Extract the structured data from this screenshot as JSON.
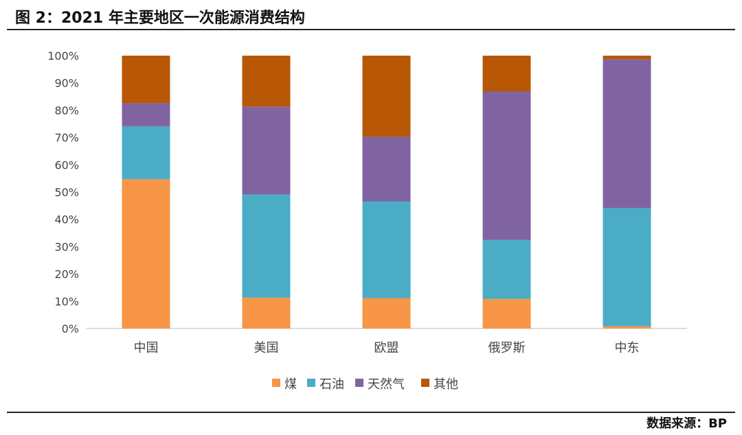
{
  "chart_data": {
    "type": "bar",
    "stacked": true,
    "title": "图 2：2021 年主要地区一次能源消费结构",
    "source": "数据来源：BP",
    "categories": [
      "中国",
      "美国",
      "欧盟",
      "俄罗斯",
      "中东"
    ],
    "series": [
      {
        "name": "煤",
        "color": "#F79646",
        "values": [
          54.7,
          11.3,
          11.1,
          10.8,
          0.8
        ]
      },
      {
        "name": "石油",
        "color": "#4BACC6",
        "values": [
          19.4,
          37.8,
          35.5,
          21.7,
          43.3
        ]
      },
      {
        "name": "天然气",
        "color": "#8064A2",
        "values": [
          8.5,
          32.2,
          23.7,
          54.4,
          54.6
        ]
      },
      {
        "name": "其他",
        "color": "#B85706",
        "values": [
          17.4,
          18.7,
          29.7,
          13.1,
          1.3
        ]
      }
    ],
    "ylim": [
      0,
      100
    ],
    "yticks": [
      "0%",
      "10%",
      "20%",
      "30%",
      "40%",
      "50%",
      "60%",
      "70%",
      "80%",
      "90%",
      "100%"
    ],
    "legend": "bottom",
    "grid": false
  }
}
